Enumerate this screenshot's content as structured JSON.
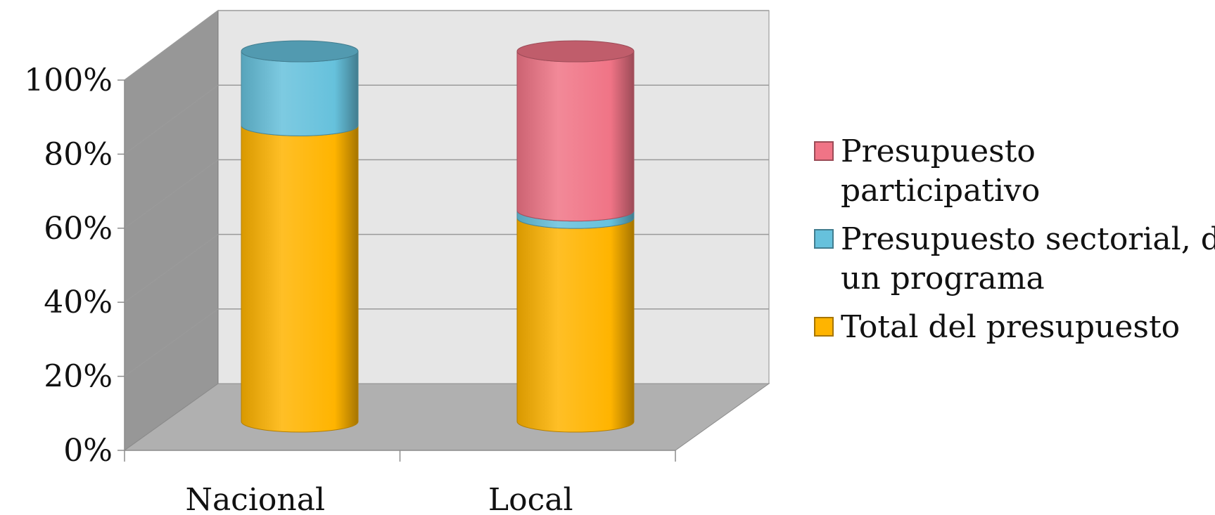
{
  "chart_data": {
    "type": "bar",
    "style": "3d-stacked-cylinder-percent",
    "categories": [
      "Nacional",
      "Local"
    ],
    "series": [
      {
        "name": "Total del presupuesto",
        "values": [
          80,
          55
        ],
        "color": "#FFB400"
      },
      {
        "name": "Presupuesto sectorial, de un programa",
        "values": [
          20,
          2
        ],
        "color": "#66C1DC"
      },
      {
        "name": "Presupuesto participativo",
        "values": [
          0,
          43
        ],
        "color": "#F07486"
      }
    ],
    "yticks": [
      "0%",
      "20%",
      "40%",
      "60%",
      "80%",
      "100%"
    ],
    "ylim": [
      0,
      100
    ],
    "legend": {
      "position": "right",
      "items": [
        {
          "label_lines": [
            "Presupuesto",
            "participativo"
          ],
          "color": "#F07486"
        },
        {
          "label_lines": [
            "Presupuesto sectorial, de",
            "un programa"
          ],
          "color": "#66C1DC"
        },
        {
          "label_lines": [
            "Total del presupuesto"
          ],
          "color": "#FFB400"
        }
      ]
    },
    "grid": true,
    "colors": {
      "back_wall": "#E6E6E6",
      "side_wall": "#979797",
      "floor": "#B0B0B0",
      "grid": "#9A9A9A"
    }
  }
}
